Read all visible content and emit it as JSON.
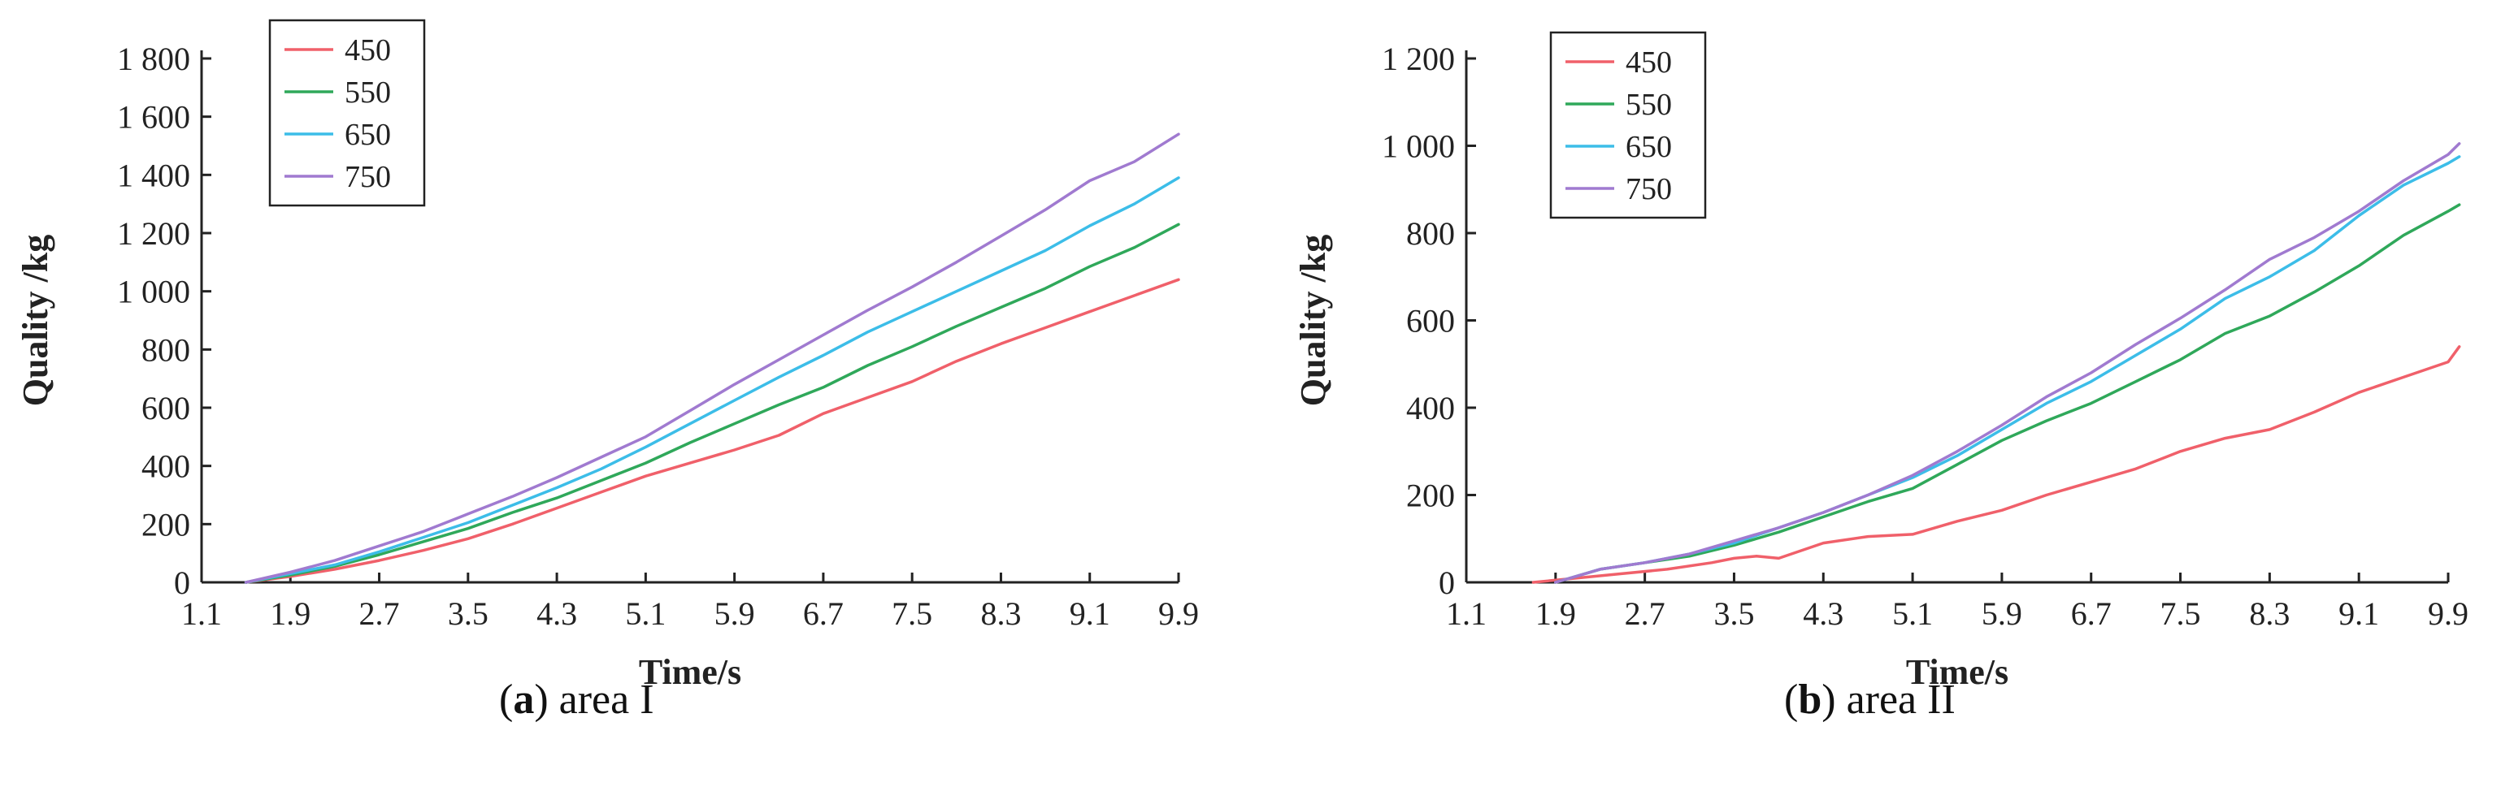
{
  "chart_data": [
    {
      "type": "line",
      "caption_letter": "a",
      "caption_text": "area I",
      "xlabel": "Time/s",
      "ylabel": "Quality /kg",
      "x_ticks": [
        "1.1",
        "1.9",
        "2.7",
        "3.5",
        "4.3",
        "5.1",
        "5.9",
        "6.7",
        "7.5",
        "8.3",
        "9.1",
        "9.9"
      ],
      "xlim": [
        1.1,
        9.9
      ],
      "ylim": [
        0,
        1800
      ],
      "y_ticks": [
        "0",
        "200",
        "400",
        "600",
        "800",
        "1 000",
        "1 200",
        "1 400",
        "1 600",
        "1 800"
      ],
      "legend_position": "top-left",
      "grid": false,
      "series": [
        {
          "name": "450",
          "color": "#f0606a",
          "x": [
            1.5,
            1.9,
            2.3,
            2.7,
            3.1,
            3.5,
            3.9,
            4.3,
            4.7,
            5.1,
            5.5,
            5.9,
            6.3,
            6.7,
            7.1,
            7.5,
            7.9,
            8.3,
            8.7,
            9.1,
            9.5,
            9.9
          ],
          "y": [
            0,
            20,
            45,
            75,
            110,
            150,
            200,
            255,
            310,
            365,
            410,
            455,
            505,
            580,
            635,
            690,
            760,
            820,
            875,
            930,
            985,
            1040
          ]
        },
        {
          "name": "550",
          "color": "#2fa85a",
          "x": [
            1.5,
            1.9,
            2.3,
            2.7,
            3.1,
            3.5,
            3.9,
            4.3,
            4.7,
            5.1,
            5.5,
            5.9,
            6.3,
            6.7,
            7.1,
            7.5,
            7.9,
            8.3,
            8.7,
            9.1,
            9.5,
            9.9
          ],
          "y": [
            0,
            25,
            55,
            95,
            140,
            185,
            240,
            290,
            350,
            410,
            480,
            545,
            610,
            670,
            745,
            810,
            880,
            945,
            1010,
            1085,
            1150,
            1230
          ]
        },
        {
          "name": "650",
          "color": "#3cbde8",
          "x": [
            1.5,
            1.9,
            2.3,
            2.7,
            3.1,
            3.5,
            3.9,
            4.3,
            4.7,
            5.1,
            5.5,
            5.9,
            6.3,
            6.7,
            7.1,
            7.5,
            7.9,
            8.3,
            8.7,
            9.1,
            9.5,
            9.9
          ],
          "y": [
            0,
            30,
            60,
            105,
            155,
            205,
            265,
            325,
            390,
            465,
            545,
            625,
            705,
            780,
            860,
            930,
            1000,
            1070,
            1140,
            1225,
            1300,
            1390
          ]
        },
        {
          "name": "750",
          "color": "#a07ad0",
          "x": [
            1.5,
            1.9,
            2.3,
            2.7,
            3.1,
            3.5,
            3.9,
            4.3,
            4.7,
            5.1,
            5.5,
            5.9,
            6.3,
            6.7,
            7.1,
            7.5,
            7.9,
            8.3,
            8.7,
            9.1,
            9.5,
            9.9
          ],
          "y": [
            0,
            35,
            75,
            125,
            175,
            235,
            295,
            360,
            430,
            500,
            590,
            680,
            765,
            850,
            935,
            1015,
            1100,
            1190,
            1280,
            1380,
            1445,
            1540
          ]
        }
      ]
    },
    {
      "type": "line",
      "caption_letter": "b",
      "caption_text": "area II",
      "xlabel": "Time/s",
      "ylabel": "Quality /kg",
      "x_ticks": [
        "1.1",
        "1.9",
        "2.7",
        "3.5",
        "4.3",
        "5.1",
        "5.9",
        "6.7",
        "7.5",
        "8.3",
        "9.1",
        "9.9"
      ],
      "xlim": [
        1.1,
        9.9
      ],
      "ylim": [
        0,
        1200
      ],
      "y_ticks": [
        "0",
        "200",
        "400",
        "600",
        "800",
        "1 000",
        "1 200"
      ],
      "legend_position": "top-left",
      "grid": false,
      "series": [
        {
          "name": "450",
          "color": "#f0606a",
          "x": [
            1.7,
            2.1,
            2.5,
            2.9,
            3.3,
            3.5,
            3.7,
            3.9,
            4.3,
            4.7,
            5.1,
            5.5,
            5.9,
            6.3,
            6.7,
            7.1,
            7.5,
            7.9,
            8.3,
            8.7,
            9.1,
            9.5,
            9.9,
            10.0
          ],
          "y": [
            0,
            10,
            20,
            30,
            45,
            55,
            60,
            55,
            90,
            105,
            110,
            140,
            165,
            200,
            230,
            260,
            300,
            330,
            350,
            390,
            435,
            470,
            505,
            540
          ]
        },
        {
          "name": "550",
          "color": "#2fa85a",
          "x": [
            1.9,
            2.3,
            2.7,
            3.1,
            3.5,
            3.9,
            4.3,
            4.7,
            5.1,
            5.5,
            5.9,
            6.3,
            6.7,
            7.1,
            7.5,
            7.9,
            8.3,
            8.7,
            9.1,
            9.5,
            9.9,
            10.0
          ],
          "y": [
            0,
            30,
            45,
            60,
            85,
            115,
            150,
            185,
            215,
            270,
            325,
            370,
            410,
            460,
            510,
            570,
            610,
            665,
            725,
            795,
            850,
            865
          ]
        },
        {
          "name": "650",
          "color": "#3cbde8",
          "x": [
            1.9,
            2.3,
            2.7,
            3.1,
            3.5,
            3.9,
            4.3,
            4.7,
            5.1,
            5.5,
            5.9,
            6.3,
            6.7,
            7.1,
            7.5,
            7.9,
            8.3,
            8.7,
            9.1,
            9.5,
            9.9,
            10.0
          ],
          "y": [
            0,
            30,
            45,
            65,
            90,
            125,
            160,
            200,
            240,
            290,
            350,
            410,
            460,
            520,
            580,
            650,
            700,
            760,
            840,
            910,
            960,
            975
          ]
        },
        {
          "name": "750",
          "color": "#a07ad0",
          "x": [
            1.9,
            2.3,
            2.7,
            3.1,
            3.5,
            3.9,
            4.3,
            4.7,
            5.1,
            5.5,
            5.9,
            6.3,
            6.7,
            7.1,
            7.5,
            7.9,
            8.3,
            8.7,
            9.1,
            9.5,
            9.9,
            10.0
          ],
          "y": [
            0,
            30,
            45,
            65,
            95,
            125,
            160,
            200,
            245,
            300,
            360,
            425,
            480,
            545,
            605,
            670,
            740,
            790,
            850,
            920,
            980,
            1005
          ]
        }
      ]
    }
  ]
}
